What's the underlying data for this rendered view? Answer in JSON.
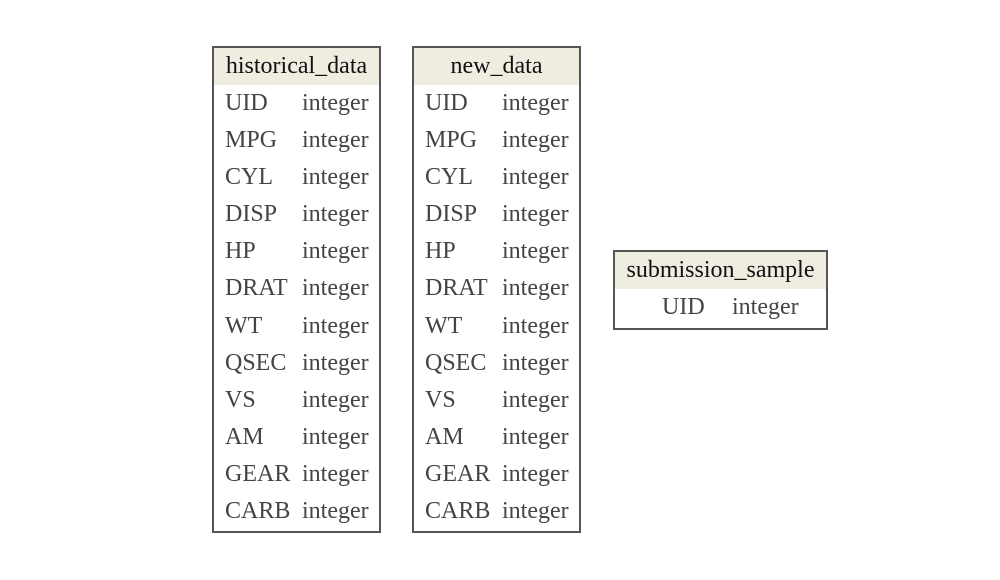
{
  "tables": [
    {
      "id": "historical",
      "name": "historical_data",
      "fields": [
        {
          "name": "UID",
          "type": "integer"
        },
        {
          "name": "MPG",
          "type": "integer"
        },
        {
          "name": "CYL",
          "type": "integer"
        },
        {
          "name": "DISP",
          "type": "integer"
        },
        {
          "name": "HP",
          "type": "integer"
        },
        {
          "name": "DRAT",
          "type": "integer"
        },
        {
          "name": "WT",
          "type": "integer"
        },
        {
          "name": "QSEC",
          "type": "integer"
        },
        {
          "name": "VS",
          "type": "integer"
        },
        {
          "name": "AM",
          "type": "integer"
        },
        {
          "name": "GEAR",
          "type": "integer"
        },
        {
          "name": "CARB",
          "type": "integer"
        }
      ]
    },
    {
      "id": "new",
      "name": "new_data",
      "fields": [
        {
          "name": "UID",
          "type": "integer"
        },
        {
          "name": "MPG",
          "type": "integer"
        },
        {
          "name": "CYL",
          "type": "integer"
        },
        {
          "name": "DISP",
          "type": "integer"
        },
        {
          "name": "HP",
          "type": "integer"
        },
        {
          "name": "DRAT",
          "type": "integer"
        },
        {
          "name": "WT",
          "type": "integer"
        },
        {
          "name": "QSEC",
          "type": "integer"
        },
        {
          "name": "VS",
          "type": "integer"
        },
        {
          "name": "AM",
          "type": "integer"
        },
        {
          "name": "GEAR",
          "type": "integer"
        },
        {
          "name": "CARB",
          "type": "integer"
        }
      ]
    },
    {
      "id": "submission",
      "name": "submission_sample",
      "fields": [
        {
          "name": "UID",
          "type": "integer"
        }
      ]
    }
  ],
  "colors": {
    "header_background": "#efece0",
    "border": "#555555",
    "text": "#444444"
  }
}
